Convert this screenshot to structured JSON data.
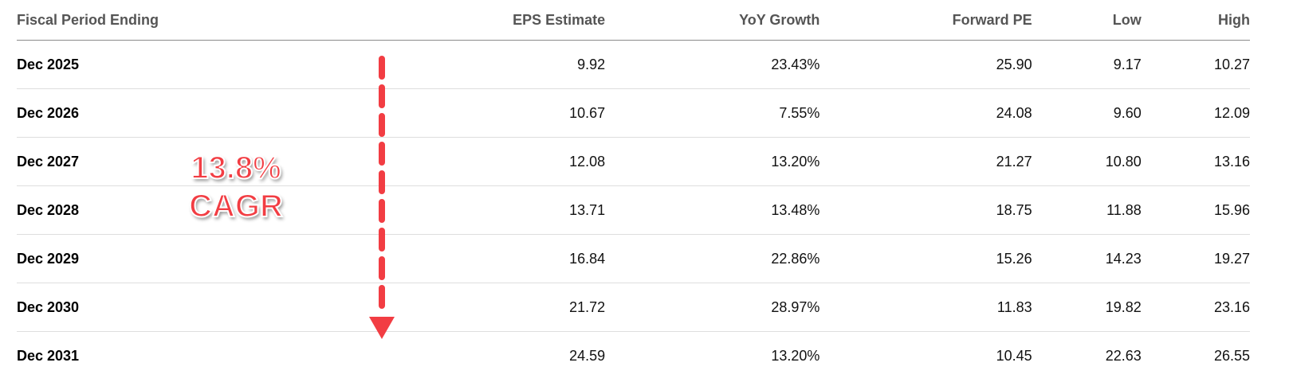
{
  "table": {
    "headers": [
      "Fiscal Period Ending",
      "EPS Estimate",
      "YoY Growth",
      "Forward PE",
      "Low",
      "High"
    ],
    "rows": [
      [
        "Dec 2025",
        "9.92",
        "23.43%",
        "25.90",
        "9.17",
        "10.27"
      ],
      [
        "Dec 2026",
        "10.67",
        "7.55%",
        "24.08",
        "9.60",
        "12.09"
      ],
      [
        "Dec 2027",
        "12.08",
        "13.20%",
        "21.27",
        "10.80",
        "13.16"
      ],
      [
        "Dec 2028",
        "13.71",
        "13.48%",
        "18.75",
        "11.88",
        "15.96"
      ],
      [
        "Dec 2029",
        "16.84",
        "22.86%",
        "15.26",
        "14.23",
        "19.27"
      ],
      [
        "Dec 2030",
        "21.72",
        "28.97%",
        "11.83",
        "19.82",
        "23.16"
      ],
      [
        "Dec 2031",
        "24.59",
        "13.20%",
        "10.45",
        "22.63",
        "26.55"
      ]
    ]
  },
  "annotation": {
    "line1": "13.8%",
    "line2": "CAGR",
    "color": "#f23d43",
    "arrow_icon": "dashed-arrow-down-icon"
  }
}
